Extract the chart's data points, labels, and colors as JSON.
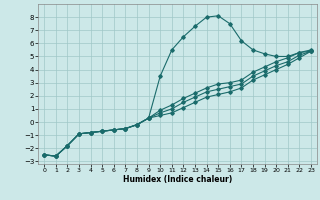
{
  "xlabel": "Humidex (Indice chaleur)",
  "bg_color": "#cce8e8",
  "grid_color": "#a0c8c8",
  "line_color": "#1a6b6b",
  "xlim": [
    -0.5,
    23.5
  ],
  "ylim": [
    -3.2,
    9.0
  ],
  "xticks": [
    0,
    1,
    2,
    3,
    4,
    5,
    6,
    7,
    8,
    9,
    10,
    11,
    12,
    13,
    14,
    15,
    16,
    17,
    18,
    19,
    20,
    21,
    22,
    23
  ],
  "yticks": [
    -3,
    -2,
    -1,
    0,
    1,
    2,
    3,
    4,
    5,
    6,
    7,
    8
  ],
  "line1_x": [
    0,
    1,
    2,
    3,
    4,
    5,
    6,
    7,
    8,
    9,
    10,
    11,
    12,
    13,
    14,
    15,
    16,
    17,
    18,
    19,
    20,
    21,
    22,
    23
  ],
  "line1_y": [
    -2.5,
    -2.6,
    -1.8,
    -0.9,
    -0.8,
    -0.7,
    -0.6,
    -0.5,
    -0.2,
    0.3,
    3.5,
    5.5,
    6.5,
    7.3,
    8.0,
    8.1,
    7.5,
    6.2,
    5.5,
    5.2,
    5.0,
    5.0,
    5.3,
    5.4
  ],
  "line2_x": [
    0,
    1,
    2,
    3,
    4,
    5,
    6,
    7,
    8,
    9,
    10,
    11,
    12,
    13,
    14,
    15,
    16,
    17,
    18,
    19,
    20,
    21,
    22,
    23
  ],
  "line2_y": [
    -2.5,
    -2.6,
    -1.8,
    -0.9,
    -0.8,
    -0.7,
    -0.6,
    -0.5,
    -0.2,
    0.3,
    0.9,
    1.3,
    1.8,
    2.2,
    2.6,
    2.9,
    3.0,
    3.2,
    3.8,
    4.2,
    4.6,
    4.9,
    5.3,
    5.5
  ],
  "line3_x": [
    0,
    1,
    2,
    3,
    4,
    5,
    6,
    7,
    8,
    9,
    10,
    11,
    12,
    13,
    14,
    15,
    16,
    17,
    18,
    19,
    20,
    21,
    22,
    23
  ],
  "line3_y": [
    -2.5,
    -2.6,
    -1.8,
    -0.9,
    -0.8,
    -0.7,
    -0.6,
    -0.5,
    -0.2,
    0.3,
    0.7,
    1.0,
    1.5,
    1.9,
    2.3,
    2.5,
    2.7,
    2.9,
    3.5,
    3.9,
    4.3,
    4.6,
    5.1,
    5.4
  ],
  "line4_x": [
    0,
    1,
    2,
    3,
    4,
    5,
    6,
    7,
    8,
    9,
    10,
    11,
    12,
    13,
    14,
    15,
    16,
    17,
    18,
    19,
    20,
    21,
    22,
    23
  ],
  "line4_y": [
    -2.5,
    -2.6,
    -1.8,
    -0.9,
    -0.8,
    -0.7,
    -0.6,
    -0.5,
    -0.2,
    0.3,
    0.5,
    0.7,
    1.1,
    1.5,
    1.9,
    2.1,
    2.3,
    2.6,
    3.2,
    3.6,
    4.0,
    4.4,
    4.9,
    5.4
  ]
}
